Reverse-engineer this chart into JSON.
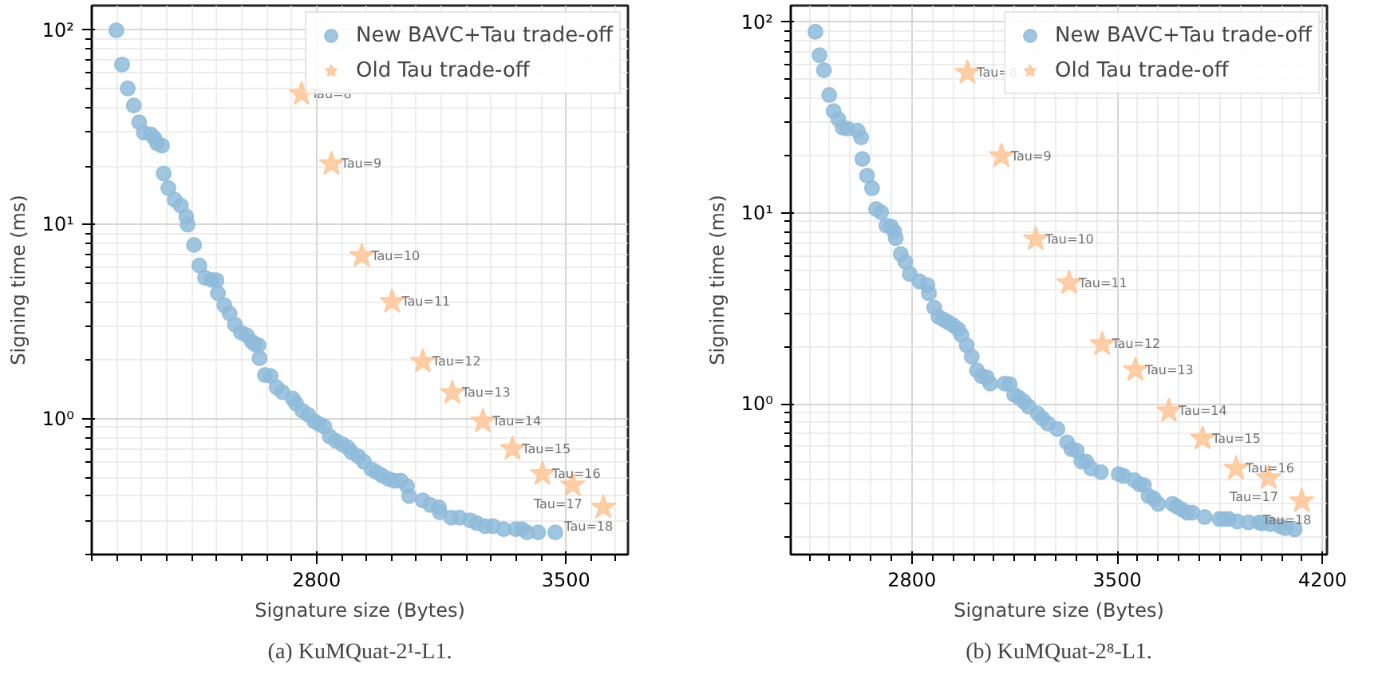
{
  "chart_data": [
    {
      "type": "scatter",
      "xlabel": "Signature size (Bytes)",
      "ylabel": "Signing time (ms)",
      "log": "y",
      "grid": true,
      "legend": "top right",
      "xlim": [
        2169,
        3674
      ],
      "xticks": [
        {
          "value": 2170,
          "label": null
        },
        {
          "value": 2240,
          "label": null
        },
        {
          "value": 2310,
          "label": null
        },
        {
          "value": 2380,
          "label": null
        },
        {
          "value": 2450,
          "label": null
        },
        {
          "value": 2520,
          "label": null
        },
        {
          "value": 2590,
          "label": null
        },
        {
          "value": 2660,
          "label": null
        },
        {
          "value": 2730,
          "label": null
        },
        2800,
        {
          "value": 2870,
          "label": null
        },
        {
          "value": 2940,
          "label": null
        },
        {
          "value": 3010,
          "label": null
        },
        {
          "value": 3080,
          "label": null
        },
        {
          "value": 3150,
          "label": null
        },
        {
          "value": 3220,
          "label": null
        },
        {
          "value": 3290,
          "label": null
        },
        {
          "value": 3360,
          "label": null
        },
        {
          "value": 3430,
          "label": null
        },
        3500,
        {
          "value": 3570,
          "label": null
        },
        {
          "value": 3640,
          "label": null
        }
      ],
      "ylim": [
        0.2,
        134
      ],
      "yticks": [
        {
          "value": 0.2,
          "label": null
        },
        {
          "value": 0.3,
          "label": null
        },
        {
          "value": 0.4,
          "label": null
        },
        {
          "value": 0.5,
          "label": null
        },
        {
          "value": 0.6,
          "label": null
        },
        {
          "value": 0.7,
          "label": null
        },
        {
          "value": 0.8,
          "label": null
        },
        {
          "value": 0.9,
          "label": null
        },
        {
          "value": 1,
          "label": "10⁰"
        },
        {
          "value": 2,
          "label": null
        },
        {
          "value": 3,
          "label": null
        },
        {
          "value": 4,
          "label": null
        },
        {
          "value": 5,
          "label": null
        },
        {
          "value": 6,
          "label": null
        },
        {
          "value": 7,
          "label": null
        },
        {
          "value": 8,
          "label": null
        },
        {
          "value": 9,
          "label": null
        },
        {
          "value": 10,
          "label": "10¹"
        },
        {
          "value": 20,
          "label": null
        },
        {
          "value": 30,
          "label": null
        },
        {
          "value": 40,
          "label": null
        },
        {
          "value": 50,
          "label": null
        },
        {
          "value": 60,
          "label": null
        },
        {
          "value": 70,
          "label": null
        },
        {
          "value": 80,
          "label": null
        },
        {
          "value": 90,
          "label": null
        },
        {
          "value": 100,
          "label": "10²"
        }
      ],
      "series": [
        {
          "name": "New BAVC+Tau trade-off",
          "color": "#8fbbd9",
          "marker": "circle",
          "x": [
            2238,
            2254,
            2270,
            2287,
            2302,
            2315,
            2335,
            2345,
            2353,
            2366,
            2371,
            2384,
            2402,
            2419,
            2434,
            2438,
            2456,
            2471,
            2487,
            2505,
            2519,
            2523,
            2541,
            2556,
            2571,
            2588,
            2604,
            2618,
            2627,
            2637,
            2640,
            2655,
            2671,
            2688,
            2704,
            2733,
            2742,
            2760,
            2776,
            2794,
            2807,
            2822,
            2837,
            2854,
            2872,
            2888,
            2899,
            2917,
            2933,
            2954,
            2969,
            2984,
            3002,
            3018,
            3036,
            3054,
            3060,
            3098,
            3119,
            3143,
            3146,
            3178,
            3201,
            3231,
            3250,
            3273,
            3295,
            3325,
            3359,
            3376,
            3391,
            3422,
            3470
          ],
          "values": [
            100,
            66.6,
            50.2,
            41,
            33.6,
            29.7,
            29.1,
            27.8,
            26.1,
            25.5,
            18.3,
            15.4,
            13.4,
            12.5,
            11,
            10,
            7.85,
            6.15,
            5.32,
            5.19,
            5.16,
            4.43,
            3.84,
            3.48,
            3.05,
            2.78,
            2.69,
            2.5,
            2.42,
            2.39,
            2.05,
            1.68,
            1.66,
            1.45,
            1.37,
            1.27,
            1.2,
            1.1,
            1.05,
            0.97,
            0.94,
            0.91,
            0.81,
            0.77,
            0.74,
            0.71,
            0.67,
            0.64,
            0.6,
            0.55,
            0.53,
            0.51,
            0.49,
            0.48,
            0.48,
            0.45,
            0.4,
            0.38,
            0.36,
            0.35,
            0.33,
            0.31,
            0.31,
            0.3,
            0.29,
            0.28,
            0.28,
            0.27,
            0.27,
            0.27,
            0.26,
            0.26,
            0.26
          ]
        },
        {
          "name": "Old Tau trade-off",
          "color": "#ffc596",
          "marker": "star",
          "x": [
            2758,
            2842,
            2927,
            3012,
            3098,
            3181,
            3267,
            3350,
            3434,
            3519,
            3605
          ],
          "values": [
            47,
            20.5,
            6.9,
            4.0,
            1.97,
            1.36,
            0.97,
            0.7,
            0.52,
            0.455,
            0.35
          ]
        }
      ],
      "annotations": [
        {
          "text": "Tau=8",
          "x": 2758,
          "y": 47
        },
        {
          "text": "Tau=9",
          "x": 2842,
          "y": 20.5
        },
        {
          "text": "Tau=10",
          "x": 2927,
          "y": 6.9
        },
        {
          "text": "Tau=11",
          "x": 3012,
          "y": 4.0
        },
        {
          "text": "Tau=12",
          "x": 3098,
          "y": 1.97
        },
        {
          "text": "Tau=13",
          "x": 3181,
          "y": 1.36
        },
        {
          "text": "Tau=14",
          "x": 3267,
          "y": 0.97
        },
        {
          "text": "Tau=15",
          "x": 3350,
          "y": 0.7
        },
        {
          "text": "Tau=16",
          "x": 3434,
          "y": 0.52
        },
        {
          "text": "Tau=17",
          "x": 3519,
          "y": 0.455
        },
        {
          "text": "Tau=18",
          "x": 3605,
          "y": 0.35
        },
        "(a) KuMQuat-2¹-L1."
      ]
    },
    {
      "type": "scatter",
      "xlabel": "Signature size (Bytes)",
      "ylabel": "Signing time (ms)",
      "log": "y",
      "grid": true,
      "legend": "top right",
      "xlim": [
        2387,
        4215
      ],
      "xticks": [
        {
          "value": 2450,
          "label": null
        },
        {
          "value": 2520,
          "label": null
        },
        {
          "value": 2590,
          "label": null
        },
        {
          "value": 2660,
          "label": null
        },
        {
          "value": 2730,
          "label": null
        },
        2800,
        {
          "value": 2870,
          "label": null
        },
        {
          "value": 2940,
          "label": null
        },
        {
          "value": 3010,
          "label": null
        },
        {
          "value": 3080,
          "label": null
        },
        {
          "value": 3150,
          "label": null
        },
        {
          "value": 3220,
          "label": null
        },
        {
          "value": 3290,
          "label": null
        },
        {
          "value": 3360,
          "label": null
        },
        {
          "value": 3430,
          "label": null
        },
        3500,
        {
          "value": 3570,
          "label": null
        },
        {
          "value": 3640,
          "label": null
        },
        {
          "value": 3710,
          "label": null
        },
        {
          "value": 3780,
          "label": null
        },
        {
          "value": 3850,
          "label": null
        },
        {
          "value": 3920,
          "label": null
        },
        {
          "value": 3990,
          "label": null
        },
        {
          "value": 4060,
          "label": null
        },
        {
          "value": 4130,
          "label": null
        },
        4200
      ],
      "ylim": [
        0.163,
        122
      ],
      "yticks": [
        {
          "value": 0.2,
          "label": null
        },
        {
          "value": 0.3,
          "label": null
        },
        {
          "value": 0.4,
          "label": null
        },
        {
          "value": 0.5,
          "label": null
        },
        {
          "value": 0.6,
          "label": null
        },
        {
          "value": 0.7,
          "label": null
        },
        {
          "value": 0.8,
          "label": null
        },
        {
          "value": 0.9,
          "label": null
        },
        {
          "value": 1,
          "label": "10⁰"
        },
        {
          "value": 2,
          "label": null
        },
        {
          "value": 3,
          "label": null
        },
        {
          "value": 4,
          "label": null
        },
        {
          "value": 5,
          "label": null
        },
        {
          "value": 6,
          "label": null
        },
        {
          "value": 7,
          "label": null
        },
        {
          "value": 8,
          "label": null
        },
        {
          "value": 9,
          "label": null
        },
        {
          "value": 10,
          "label": "10¹"
        },
        {
          "value": 20,
          "label": null
        },
        {
          "value": 30,
          "label": null
        },
        {
          "value": 40,
          "label": null
        },
        {
          "value": 50,
          "label": null
        },
        {
          "value": 60,
          "label": null
        },
        {
          "value": 70,
          "label": null
        },
        {
          "value": 80,
          "label": null
        },
        {
          "value": 90,
          "label": null
        },
        {
          "value": 100,
          "label": "10²"
        }
      ],
      "series": [
        {
          "name": "New BAVC+Tau trade-off",
          "color": "#8fbbd9",
          "marker": "circle",
          "x": [
            2471,
            2485,
            2500,
            2518,
            2533,
            2549,
            2564,
            2580,
            2615,
            2627,
            2631,
            2647,
            2664,
            2678,
            2695,
            2713,
            2729,
            2740,
            2745,
            2762,
            2778,
            2793,
            2825,
            2853,
            2858,
            2876,
            2891,
            2907,
            2924,
            2940,
            2958,
            2969,
            2987,
            3004,
            3022,
            3038,
            3055,
            3067,
            3116,
            3133,
            3149,
            3165,
            3182,
            3198,
            3229,
            3245,
            3264,
            3296,
            3329,
            3344,
            3362,
            3378,
            3394,
            3411,
            3444,
            3505,
            3522,
            3558,
            3576,
            3591,
            3607,
            3624,
            3640,
            3689,
            3704,
            3722,
            3738,
            3756,
            3798,
            3849,
            3864,
            3880,
            3909,
            3947,
            3984,
            3994,
            4022,
            4056,
            4073,
            4105
          ],
          "values": [
            89,
            67,
            56,
            41.5,
            34.2,
            31,
            28,
            27.7,
            27,
            24.9,
            19.2,
            15.7,
            13.5,
            10.5,
            10.1,
            8.6,
            8.5,
            8.0,
            7.4,
            6.1,
            5.55,
            4.8,
            4.4,
            4.2,
            3.8,
            3.2,
            2.86,
            2.77,
            2.68,
            2.59,
            2.46,
            2.3,
            2.03,
            1.77,
            1.5,
            1.4,
            1.38,
            1.28,
            1.28,
            1.27,
            1.12,
            1.08,
            1.03,
            0.97,
            0.89,
            0.84,
            0.79,
            0.74,
            0.63,
            0.58,
            0.57,
            0.5,
            0.5,
            0.46,
            0.44,
            0.43,
            0.42,
            0.4,
            0.38,
            0.376,
            0.33,
            0.32,
            0.3,
            0.3,
            0.29,
            0.28,
            0.27,
            0.27,
            0.256,
            0.25,
            0.25,
            0.25,
            0.243,
            0.24,
            0.24,
            0.237,
            0.235,
            0.229,
            0.224,
            0.221
          ]
        },
        {
          "name": "Old Tau trade-off",
          "color": "#ffc596",
          "marker": "star",
          "x": [
            2989,
            3105,
            3222,
            3336,
            3449,
            3562,
            3676,
            3791,
            3905,
            4016,
            4129
          ],
          "values": [
            54.4,
            19.9,
            7.3,
            4.3,
            2.06,
            1.51,
            0.92,
            0.66,
            0.46,
            0.41,
            0.31
          ]
        }
      ],
      "annotations": [
        {
          "text": "Tau=8",
          "x": 2989,
          "y": 54.4
        },
        {
          "text": "Tau=9",
          "x": 3105,
          "y": 19.9
        },
        {
          "text": "Tau=10",
          "x": 3222,
          "y": 7.3
        },
        {
          "text": "Tau=11",
          "x": 3336,
          "y": 4.3
        },
        {
          "text": "Tau=12",
          "x": 3449,
          "y": 2.06
        },
        {
          "text": "Tau=13",
          "x": 3562,
          "y": 1.51
        },
        {
          "text": "Tau=14",
          "x": 3676,
          "y": 0.92
        },
        {
          "text": "Tau=15",
          "x": 3791,
          "y": 0.66
        },
        {
          "text": "Tau=16",
          "x": 3905,
          "y": 0.46
        },
        {
          "text": "Tau=17",
          "x": 4016,
          "y": 0.41
        },
        {
          "text": "Tau=18",
          "x": 4129,
          "y": 0.31
        },
        "(b) KuMQuat-2⁸-L1."
      ]
    }
  ]
}
